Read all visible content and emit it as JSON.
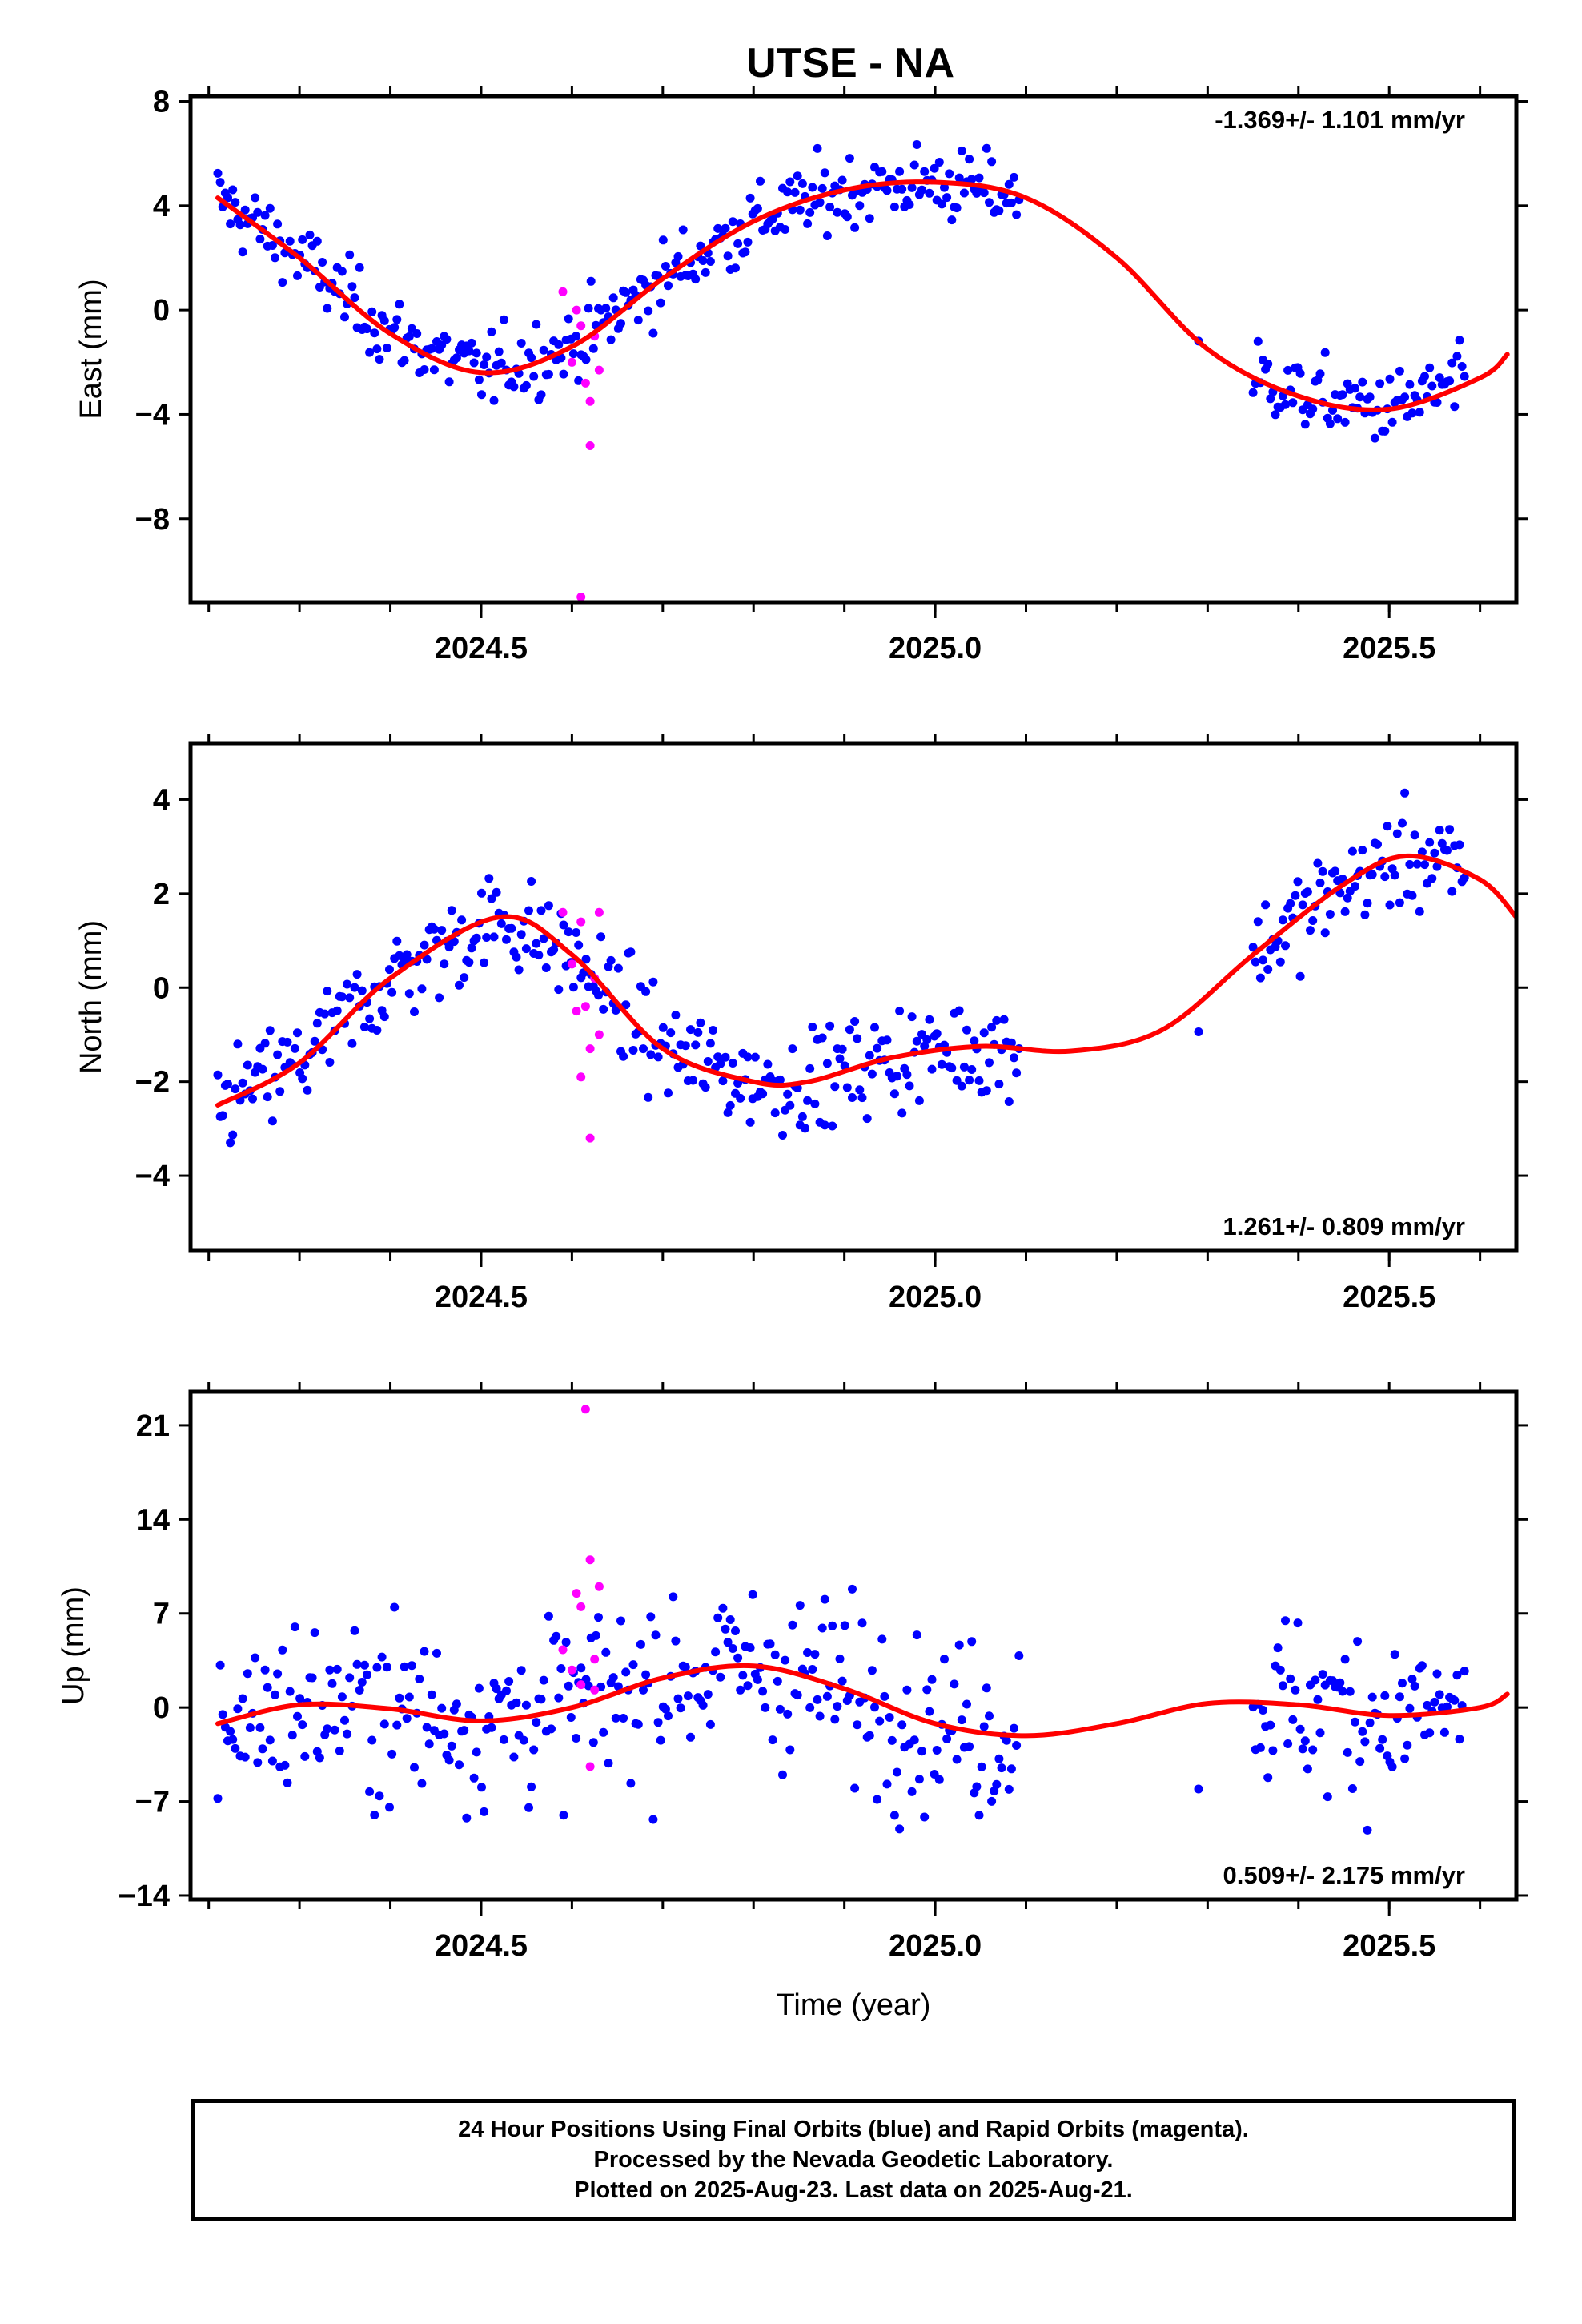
{
  "title": "UTSE - NA",
  "colors": {
    "final": "#0000ff",
    "rapid": "#ff00ff",
    "model": "#ff0000",
    "frame": "#000000"
  },
  "chart_data": [
    {
      "type": "scatter",
      "ylabel": "East (mm)",
      "xlabel": "",
      "annotation": "-1.369+/- 1.101 mm/yr",
      "annotation_position": "top-right",
      "xlim": [
        2024.18,
        2025.64
      ],
      "ylim": [
        -11.2,
        8.2
      ],
      "xticks": [
        2024.5,
        2025.0,
        2025.5
      ],
      "xtick_labels": [
        "2024.5",
        "2025.0",
        "2025.5"
      ],
      "yticks": [
        8,
        4,
        0,
        -4,
        -8
      ],
      "ytick_labels": [
        "8",
        "4",
        "0",
        "−4",
        "−8"
      ],
      "model": {
        "x": [
          2024.21,
          2024.3,
          2024.4,
          2024.5,
          2024.6,
          2024.7,
          2024.8,
          2024.9,
          2025.0,
          2025.1,
          2025.2,
          2025.3,
          2025.4,
          2025.5,
          2025.6,
          2025.63
        ],
        "y": [
          4.3,
          2.0,
          -0.9,
          -2.4,
          -1.4,
          1.2,
          3.4,
          4.6,
          4.9,
          4.3,
          2.0,
          -1.5,
          -3.3,
          -3.8,
          -2.6,
          -1.7
        ]
      },
      "rapid": {
        "x": [
          2024.59,
          2024.6,
          2024.605,
          2024.61,
          2024.615,
          2024.62,
          2024.625,
          2024.63,
          2024.61,
          2024.62
        ],
        "y": [
          0.7,
          -2.0,
          0.0,
          -0.6,
          -2.8,
          -3.5,
          -1.0,
          -2.3,
          -11.0,
          -5.2
        ]
      },
      "trend_offset": 0.0
    },
    {
      "type": "scatter",
      "ylabel": "North (mm)",
      "xlabel": "",
      "annotation": "1.261+/- 0.809 mm/yr",
      "annotation_position": "bottom-right",
      "xlim": [
        2024.18,
        2025.64
      ],
      "ylim": [
        -5.6,
        5.2
      ],
      "xticks": [
        2024.5,
        2025.0,
        2025.5
      ],
      "xtick_labels": [
        "2024.5",
        "2025.0",
        "2025.5"
      ],
      "yticks": [
        4,
        2,
        0,
        -2,
        -4
      ],
      "ytick_labels": [
        "4",
        "2",
        "0",
        "−2",
        "−4"
      ],
      "model": {
        "x": [
          2024.21,
          2024.3,
          2024.4,
          2024.52,
          2024.6,
          2024.7,
          2024.8,
          2024.86,
          2024.95,
          2025.05,
          2025.15,
          2025.25,
          2025.35,
          2025.45,
          2025.52,
          2025.6,
          2025.64
        ],
        "y": [
          -2.5,
          -1.6,
          0.2,
          1.5,
          0.7,
          -1.3,
          -2.0,
          -2.0,
          -1.5,
          -1.25,
          -1.35,
          -0.9,
          0.7,
          2.2,
          2.8,
          2.3,
          1.5
        ]
      },
      "rapid": {
        "x": [
          2024.59,
          2024.6,
          2024.605,
          2024.61,
          2024.615,
          2024.62,
          2024.625,
          2024.63,
          2024.61,
          2024.62,
          2024.63
        ],
        "y": [
          1.6,
          0.5,
          -0.5,
          1.4,
          -0.4,
          -3.2,
          0.2,
          -1.0,
          -1.9,
          -1.3,
          1.6
        ]
      }
    },
    {
      "type": "scatter",
      "ylabel": "Up (mm)",
      "xlabel": "Time (year)",
      "annotation": "0.509+/- 2.175 mm/yr",
      "annotation_position": "bottom-right",
      "xlim": [
        2024.18,
        2025.64
      ],
      "ylim": [
        -14.3,
        23.5
      ],
      "xticks": [
        2024.5,
        2025.0,
        2025.5
      ],
      "xtick_labels": [
        "2024.5",
        "2025.0",
        "2025.5"
      ],
      "yticks": [
        21,
        14,
        7,
        0,
        -7,
        -14
      ],
      "ytick_labels": [
        "21",
        "14",
        "7",
        "0",
        "−7",
        "−14"
      ],
      "model": {
        "x": [
          2024.21,
          2024.3,
          2024.4,
          2024.5,
          2024.6,
          2024.7,
          2024.8,
          2024.9,
          2025.0,
          2025.1,
          2025.2,
          2025.3,
          2025.4,
          2025.5,
          2025.6,
          2025.63
        ],
        "y": [
          -1.2,
          0.2,
          -0.1,
          -1.0,
          0.0,
          2.2,
          3.1,
          1.4,
          -1.2,
          -2.1,
          -1.2,
          0.3,
          0.2,
          -0.6,
          0.0,
          1.0
        ]
      },
      "rapid": {
        "x": [
          2024.59,
          2024.6,
          2024.605,
          2024.61,
          2024.615,
          2024.62,
          2024.625,
          2024.63,
          2024.61,
          2024.62,
          2024.625
        ],
        "y": [
          4.3,
          2.8,
          8.5,
          1.7,
          22.2,
          11.0,
          3.6,
          9.0,
          7.5,
          -4.4,
          1.3
        ]
      }
    }
  ],
  "footer": {
    "line1": "24 Hour Positions Using Final Orbits (blue) and Rapid Orbits (magenta).",
    "line2": "Processed by the Nevada Geodetic Laboratory.",
    "line3": "Plotted on 2025-Aug-23. Last data on 2025-Aug-21."
  }
}
